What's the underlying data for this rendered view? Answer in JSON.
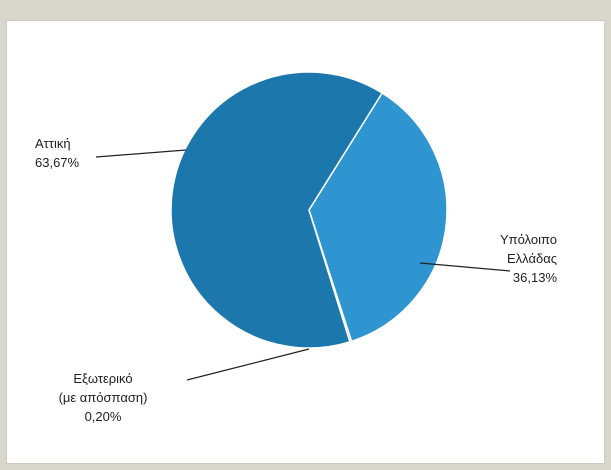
{
  "chart_data": {
    "type": "pie",
    "start_angle_deg": 32,
    "direction": "clockwise",
    "slices": [
      {
        "label": "Υπόλοιπο\nΕλλάδας",
        "value": 36.13,
        "value_text": "36,13%",
        "color": "#2e95d1"
      },
      {
        "label": "Εξωτερικό\n(με απόσπαση)",
        "value": 0.2,
        "value_text": "0,20%",
        "color": "#1f6fa0"
      },
      {
        "label": "Αττική",
        "value": 63.67,
        "value_text": "63,67%",
        "color": "#1c77ad"
      }
    ],
    "slice_border_color": "#ffffff"
  }
}
